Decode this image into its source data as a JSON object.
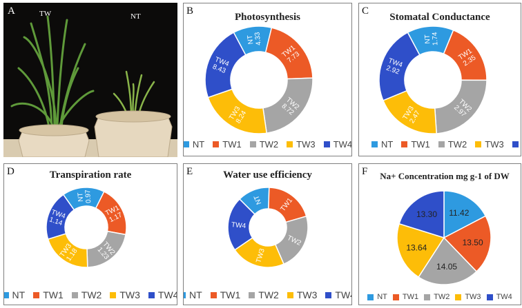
{
  "colors": {
    "NT": "#2e9ae0",
    "TW1": "#ec5a26",
    "TW2": "#a5a5a5",
    "TW3": "#fdbd08",
    "TW4": "#2f4fc9"
  },
  "panel_a": {
    "label": "A",
    "tag_left": "TW",
    "tag_right": "NT"
  },
  "chart_data": [
    {
      "id": "B",
      "type": "pie",
      "style": "donut",
      "title": "Photosynthesis",
      "categories": [
        "NT",
        "TW1",
        "TW2",
        "TW3",
        "TW4"
      ],
      "values": [
        4.33,
        7.73,
        8.72,
        8.24,
        8.43
      ],
      "labels": [
        "4.33",
        "7.73",
        "8.72",
        "8.24",
        "8.43"
      ],
      "show_values": true,
      "legend": "bottom"
    },
    {
      "id": "C",
      "type": "pie",
      "style": "donut",
      "title": "Stomatal Conductance",
      "categories": [
        "NT",
        "TW1",
        "TW2",
        "TW3",
        "TW4"
      ],
      "values": [
        1.74,
        2.35,
        2.97,
        2.47,
        2.92
      ],
      "labels": [
        "1.74",
        "2.35",
        "2.97",
        "2.47",
        "2.92"
      ],
      "show_values": true,
      "legend": "bottom"
    },
    {
      "id": "D",
      "type": "pie",
      "style": "donut",
      "title": "Transpiration rate",
      "categories": [
        "NT",
        "TW1",
        "TW2",
        "TW3",
        "TW4"
      ],
      "values": [
        0.97,
        1.17,
        1.23,
        1.18,
        1.14
      ],
      "labels": [
        "0.97",
        "1.17",
        "1.23",
        "1.18",
        "1.14"
      ],
      "show_values": true,
      "legend": "bottom"
    },
    {
      "id": "E",
      "type": "pie",
      "style": "donut",
      "title": "Water use efficiency",
      "categories": [
        "NT",
        "TW1",
        "TW2",
        "TW3",
        "TW4"
      ],
      "values": [
        13,
        20,
        23,
        22,
        22
      ],
      "values_estimated": true,
      "show_values": false,
      "legend": "bottom"
    },
    {
      "id": "F",
      "type": "pie",
      "title": "Na+ Concentration mg g-1 of DW",
      "categories": [
        "NT",
        "TW1",
        "TW2",
        "TW3",
        "TW4"
      ],
      "values": [
        11.42,
        13.5,
        14.05,
        13.64,
        13.3
      ],
      "labels": [
        "11.42",
        "13.50",
        "14.05",
        "13.64",
        "13.30"
      ],
      "show_values": true,
      "legend": "bottom"
    }
  ]
}
